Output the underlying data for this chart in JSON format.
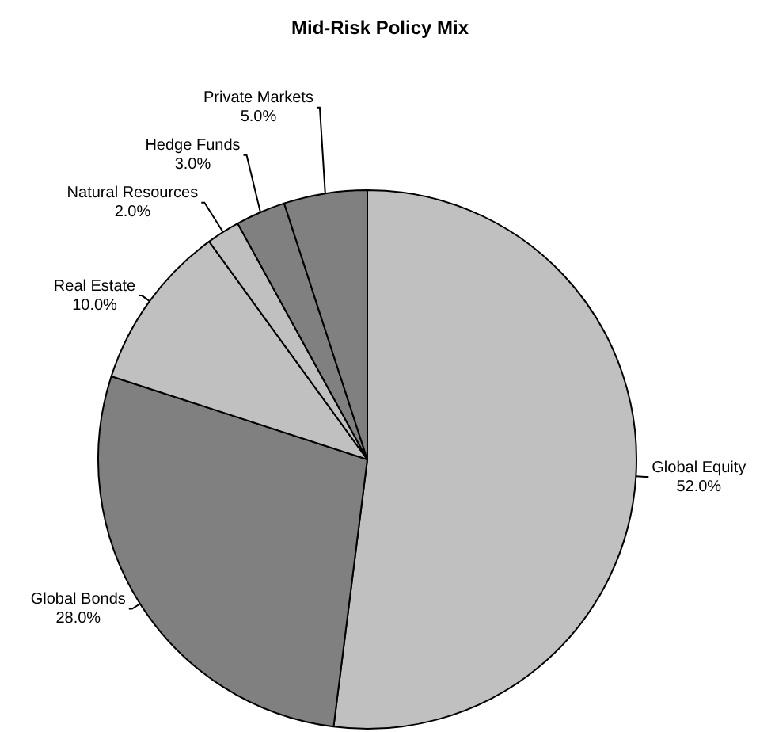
{
  "chart_data": {
    "type": "pie",
    "title": "Mid-Risk Policy Mix",
    "categories": [
      "Global Equity",
      "Global Bonds",
      "Real Estate",
      "Natural Resources",
      "Hedge Funds",
      "Private Markets"
    ],
    "values": [
      52,
      28,
      10,
      2,
      3,
      5
    ],
    "value_labels": [
      "52.0%",
      "28.0%",
      "10.0%",
      "2.0%",
      "3.0%",
      "5.0%"
    ],
    "colors": [
      "#c0c0c0",
      "#808080",
      "#c0c0c0",
      "#c0c0c0",
      "#808080",
      "#808080"
    ],
    "legend": false
  }
}
